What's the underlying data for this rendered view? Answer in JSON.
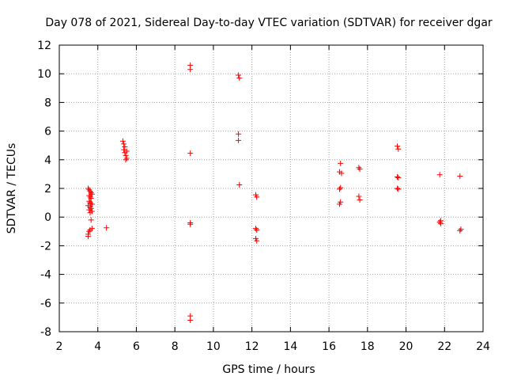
{
  "chart_data": {
    "type": "scatter",
    "title": "Day 078 of 2021, Sidereal Day-to-day VTEC variation (SDTVAR) for receiver dgar",
    "xlabel": "GPS time / hours",
    "ylabel": "SDTVAR / TECUs",
    "xlim": [
      2,
      24
    ],
    "ylim": [
      -8,
      12
    ],
    "xticks": [
      2,
      4,
      6,
      8,
      10,
      12,
      14,
      16,
      18,
      20,
      22,
      24
    ],
    "yticks": [
      -8,
      -6,
      -4,
      -2,
      0,
      2,
      4,
      6,
      8,
      10,
      12
    ],
    "grid": true,
    "marker": "+",
    "marker_color": "#ff0000",
    "series": [
      {
        "name": "SDTVAR",
        "points": [
          [
            3.5,
            2.0
          ],
          [
            3.55,
            1.9
          ],
          [
            3.6,
            1.8
          ],
          [
            3.65,
            1.7
          ],
          [
            3.55,
            1.5
          ],
          [
            3.6,
            1.4
          ],
          [
            3.65,
            1.3
          ],
          [
            3.55,
            1.1
          ],
          [
            3.6,
            1.0
          ],
          [
            3.65,
            0.9
          ],
          [
            3.5,
            0.8
          ],
          [
            3.6,
            0.7
          ],
          [
            3.65,
            0.6
          ],
          [
            3.55,
            0.5
          ],
          [
            3.7,
            0.4
          ],
          [
            3.6,
            0.3
          ],
          [
            3.65,
            -0.2
          ],
          [
            3.7,
            -0.8
          ],
          [
            3.6,
            -0.9
          ],
          [
            3.55,
            -1.0
          ],
          [
            3.5,
            -1.2
          ],
          [
            3.5,
            -1.35
          ],
          [
            3.7,
            1.6
          ],
          [
            3.7,
            0.9
          ],
          [
            4.45,
            -0.75
          ],
          [
            5.3,
            5.3
          ],
          [
            5.35,
            5.1
          ],
          [
            5.4,
            4.9
          ],
          [
            5.35,
            4.7
          ],
          [
            5.4,
            4.5
          ],
          [
            5.45,
            4.3
          ],
          [
            5.5,
            4.1
          ],
          [
            5.45,
            4.0
          ],
          [
            5.5,
            4.6
          ],
          [
            8.8,
            10.6
          ],
          [
            8.8,
            10.3
          ],
          [
            8.8,
            4.45
          ],
          [
            8.8,
            -0.4
          ],
          [
            8.8,
            -0.5
          ],
          [
            8.8,
            -6.9
          ],
          [
            8.8,
            -7.2
          ],
          [
            11.3,
            9.9
          ],
          [
            11.35,
            9.7
          ],
          [
            11.3,
            5.8
          ],
          [
            11.3,
            5.35
          ],
          [
            11.35,
            2.25
          ],
          [
            12.2,
            1.55
          ],
          [
            12.25,
            1.4
          ],
          [
            12.2,
            -0.8
          ],
          [
            12.25,
            -0.9
          ],
          [
            12.2,
            -1.5
          ],
          [
            12.25,
            -1.65
          ],
          [
            16.6,
            3.75
          ],
          [
            16.55,
            3.15
          ],
          [
            16.65,
            3.05
          ],
          [
            16.6,
            2.05
          ],
          [
            16.55,
            1.95
          ],
          [
            16.6,
            1.05
          ],
          [
            16.55,
            0.9
          ],
          [
            17.55,
            3.45
          ],
          [
            17.6,
            3.35
          ],
          [
            17.55,
            1.45
          ],
          [
            17.6,
            1.2
          ],
          [
            19.55,
            4.95
          ],
          [
            19.6,
            4.75
          ],
          [
            19.55,
            2.8
          ],
          [
            19.6,
            2.75
          ],
          [
            19.55,
            2.0
          ],
          [
            19.6,
            1.95
          ],
          [
            21.75,
            2.95
          ],
          [
            21.8,
            -0.25
          ],
          [
            21.75,
            -0.35
          ],
          [
            21.8,
            -0.45
          ],
          [
            22.8,
            2.85
          ],
          [
            22.85,
            -0.85
          ],
          [
            22.8,
            -0.95
          ]
        ]
      }
    ]
  }
}
